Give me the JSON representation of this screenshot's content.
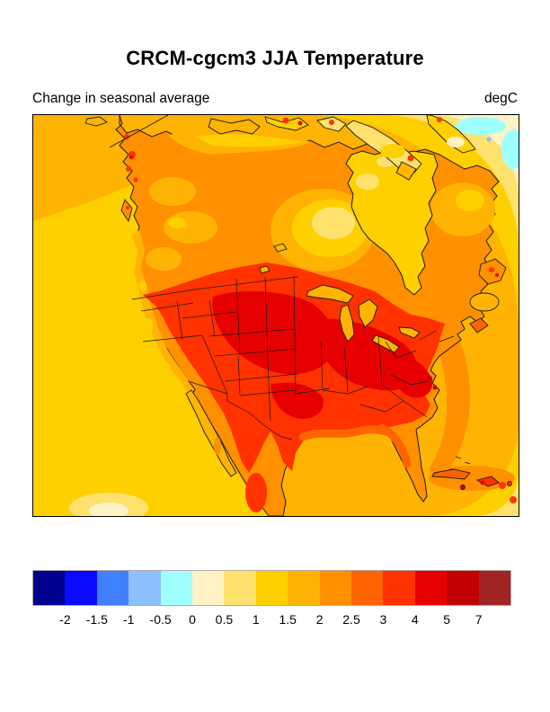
{
  "header": {
    "title": "CRCM-cgcm3 JJA Temperature",
    "subtitle_left": "Change in seasonal average",
    "units_label": "degC"
  },
  "chart_data": {
    "type": "heatmap",
    "variant": "filled-contour-map",
    "region_shown": "North America (Canada, United States, Mexico, western Atlantic, eastern Pacific, Caribbean)",
    "title": "CRCM-cgcm3 JJA Temperature",
    "subtitle": "Change in seasonal average",
    "units": "degC",
    "grid": false,
    "legend_position": "bottom-horizontal-colorbar",
    "colorbar": {
      "orientation": "horizontal",
      "levels": [
        -2,
        -1.5,
        -1,
        -0.5,
        0,
        0.5,
        1,
        1.5,
        2,
        2.5,
        3,
        4,
        5,
        7
      ],
      "colors": [
        "#00008F",
        "#0A0AFF",
        "#4080FF",
        "#8CC0FF",
        "#9FFFFF",
        "#FFF2C4",
        "#FFE26E",
        "#FFD000",
        "#FFB404",
        "#FF9000",
        "#FF6400",
        "#FF3200",
        "#E60000",
        "#C00000",
        "#A02424"
      ]
    },
    "readings_degC": [
      {
        "area": "Central and eastern United States (core)",
        "value": "3 to 5"
      },
      {
        "area": "Northern plains / Midwest / mid-Atlantic maxima",
        "value": "4 to 5"
      },
      {
        "area": "Western mountain states",
        "value": "3 to 4"
      },
      {
        "area": "Pacific coastal strip",
        "value": "1.5 to 2.5"
      },
      {
        "area": "Boreal Canada (interior)",
        "value": "2 to 2.5"
      },
      {
        "area": "Hudson Bay and land west of the bay",
        "value": "0.5 to 1.5"
      },
      {
        "area": "Arctic islands / far north",
        "value": "1 to 2"
      },
      {
        "area": "Mexico interior",
        "value": "3 to 4"
      },
      {
        "area": "Baja California and Gulf coast",
        "value": "1.5 to 2.5"
      },
      {
        "area": "Eastern Pacific ocean",
        "value": "1 to 2"
      },
      {
        "area": "Gulf of Mexico and Caribbean sea",
        "value": "1.5 to 2"
      },
      {
        "area": "Caribbean islands",
        "value": "2.5 to 4"
      },
      {
        "area": "Northwest Atlantic (top-right corner)",
        "value": "-1 to 0.5"
      }
    ]
  }
}
